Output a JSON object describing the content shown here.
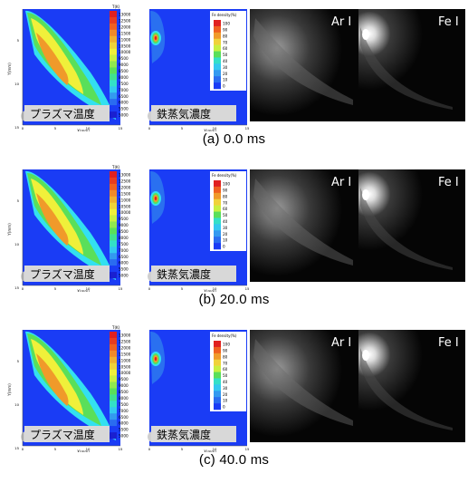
{
  "colors": {
    "blue": "#1a3cf5",
    "cyan": "#33e0f0",
    "green": "#5adf5a",
    "yellow": "#f0f03a",
    "orange": "#f09a2a",
    "red": "#e02020",
    "label_bg": "#d8d8d8"
  },
  "temperature_panel": {
    "label": "プラズマ温度",
    "unit": "T(K)",
    "legend": [
      "13000",
      "12500",
      "12000",
      "11500",
      "11000",
      "10500",
      "10000",
      "9500",
      "9000",
      "8500",
      "8000",
      "7500",
      "7000",
      "6500",
      "6000",
      "5500",
      "5000"
    ],
    "x_axis_label": "X(mm)",
    "x_ticks": [
      "0",
      "5",
      "10",
      "15"
    ],
    "y_axis_label": "Y(mm)",
    "y_ticks": [
      "5",
      "10",
      "15"
    ]
  },
  "fe_panel": {
    "label": "鉄蒸気濃度",
    "unit": "Fe density(%)",
    "legend": [
      "100",
      "90",
      "80",
      "70",
      "60",
      "50",
      "40",
      "30",
      "20",
      "10",
      "0"
    ],
    "x_axis_label": "X(mm)",
    "x_ticks": [
      "0",
      "5",
      "10",
      "15"
    ]
  },
  "photo_labels": {
    "argon": "Ar I",
    "iron": "Fe I"
  },
  "rows": [
    {
      "caption": "(a) 0.0 ms"
    },
    {
      "caption": "(b) 20.0 ms"
    },
    {
      "caption": "(c) 40.0 ms"
    }
  ]
}
